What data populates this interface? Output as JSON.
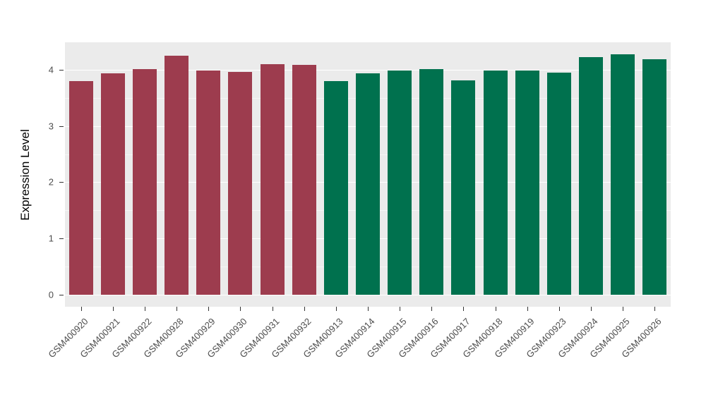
{
  "chart_data": {
    "type": "bar",
    "title": "",
    "xlabel": "",
    "ylabel": "Expression Level",
    "ylim": [
      0,
      4.4
    ],
    "yticks": [
      0,
      1,
      2,
      3,
      4
    ],
    "yticks_minor": [
      0.5,
      1.5,
      2.5,
      3.5
    ],
    "grid": "on",
    "legend": "none",
    "categories": [
      "GSM400920",
      "GSM400921",
      "GSM400922",
      "GSM400928",
      "GSM400929",
      "GSM400930",
      "GSM400931",
      "GSM400932",
      "GSM400913",
      "GSM400914",
      "GSM400915",
      "GSM400916",
      "GSM400917",
      "GSM400918",
      "GSM400919",
      "GSM400923",
      "GSM400924",
      "GSM400925",
      "GSM400926"
    ],
    "values": [
      3.8,
      3.93,
      4.01,
      4.25,
      3.98,
      3.96,
      4.1,
      4.09,
      3.8,
      3.93,
      3.98,
      4.01,
      3.81,
      3.98,
      3.98,
      3.95,
      4.22,
      4.27,
      4.19
    ],
    "bar_colors": [
      "#9D3C4E",
      "#9D3C4E",
      "#9D3C4E",
      "#9D3C4E",
      "#9D3C4E",
      "#9D3C4E",
      "#9D3C4E",
      "#9D3C4E",
      "#00714E",
      "#00714E",
      "#00714E",
      "#00714E",
      "#00714E",
      "#00714E",
      "#00714E",
      "#00714E",
      "#00714E",
      "#00714E",
      "#00714E"
    ],
    "group_colors": {
      "group1": "#9D3C4E",
      "group2": "#00714E"
    },
    "panel_background": "#EBEBEB",
    "grid_color": "#FFFFFF"
  }
}
